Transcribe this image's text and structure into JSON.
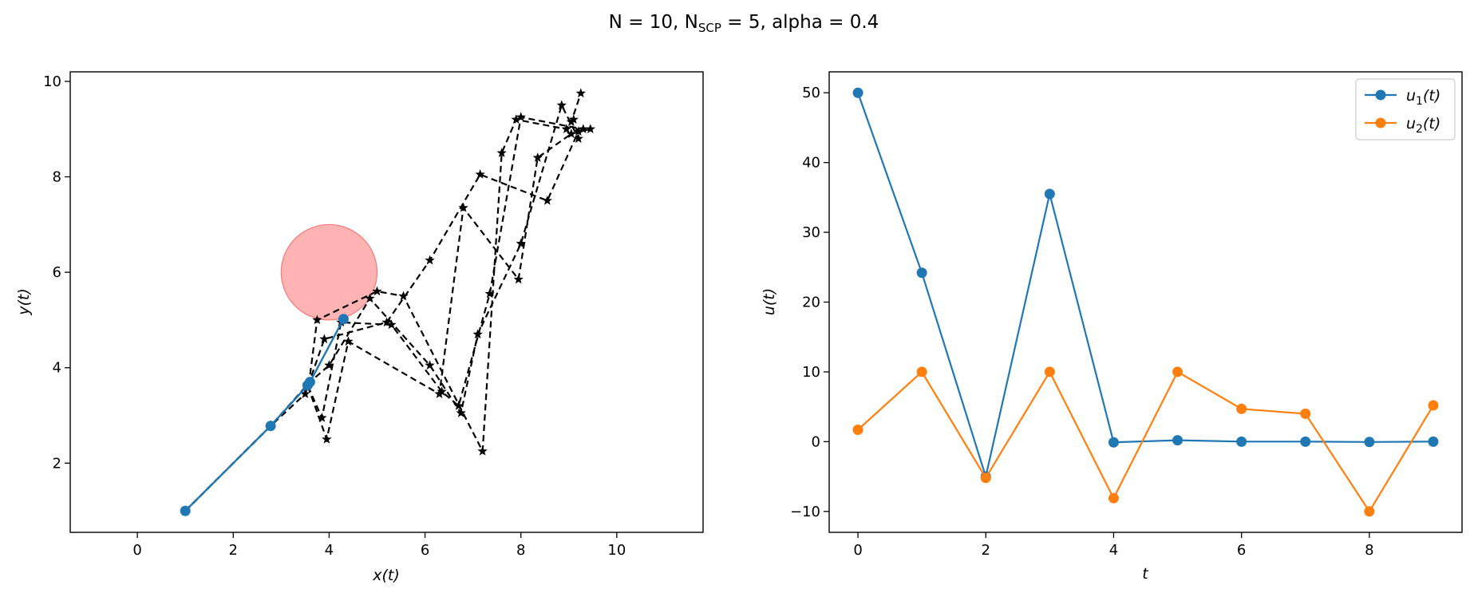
{
  "figure": {
    "title_parts": [
      "N = 10, N",
      "SCP",
      " = 5, alpha = 0.4"
    ]
  },
  "chart_data": [
    {
      "type": "line",
      "xlabel": "x(t)",
      "ylabel": "y(t)",
      "xlim": [
        -1.4,
        11.8
      ],
      "ylim": [
        0.55,
        10.2
      ],
      "xticks": [
        0,
        2,
        4,
        6,
        8,
        10
      ],
      "yticks": [
        2,
        4,
        6,
        8,
        10
      ],
      "grid": false,
      "obstacle": {
        "center": [
          4.0,
          6.0
        ],
        "radius": 1.0,
        "color": "#ff9999"
      },
      "trajectory": {
        "color": "#1f77b4",
        "x": [
          1.0,
          2.78,
          3.55,
          3.6,
          4.3
        ],
        "y": [
          1.0,
          2.78,
          3.63,
          3.7,
          5.02
        ]
      },
      "scp_iterates": [
        {
          "x": [
            1.0,
            2.78,
            3.5,
            3.9,
            5.2,
            6.1,
            7.15,
            8.55,
            9.2,
            9.05,
            9.25
          ],
          "y": [
            1.0,
            2.78,
            3.45,
            4.6,
            4.95,
            6.25,
            8.05,
            7.5,
            8.95,
            9.15,
            9.75
          ]
        },
        {
          "x": [
            1.0,
            2.78,
            3.55,
            3.95,
            4.4,
            6.3,
            6.8,
            7.95,
            8.35,
            9.05,
            9.45
          ],
          "y": [
            1.0,
            2.78,
            3.63,
            2.5,
            4.55,
            3.45,
            7.35,
            5.85,
            8.4,
            8.9,
            9.0
          ]
        },
        {
          "x": [
            1.0,
            2.78,
            3.58,
            3.75,
            5.0,
            5.55,
            7.2,
            7.6,
            7.9,
            8.95,
            9.1
          ],
          "y": [
            1.0,
            2.78,
            3.68,
            5.0,
            5.6,
            5.5,
            2.25,
            8.5,
            9.2,
            9.0,
            9.2
          ]
        },
        {
          "x": [
            1.0,
            2.78,
            3.6,
            4.0,
            4.85,
            6.1,
            6.75,
            7.1,
            8.0,
            8.85,
            9.2
          ],
          "y": [
            1.0,
            2.78,
            3.7,
            4.05,
            5.45,
            4.05,
            3.05,
            4.7,
            6.6,
            9.5,
            8.8
          ]
        },
        {
          "x": [
            1.0,
            2.78,
            3.55,
            3.85,
            4.25,
            5.3,
            6.35,
            6.7,
            7.35,
            8.0,
            9.3
          ],
          "y": [
            1.0,
            2.78,
            3.63,
            2.95,
            4.95,
            4.9,
            3.5,
            3.2,
            5.55,
            9.25,
            9.0
          ]
        }
      ]
    },
    {
      "type": "line",
      "xlabel": "t",
      "ylabel": "u(t)",
      "xlim": [
        -0.45,
        9.45
      ],
      "ylim": [
        -13,
        53
      ],
      "xticks": [
        0,
        2,
        4,
        6,
        8
      ],
      "yticks": [
        -10,
        0,
        10,
        20,
        30,
        40,
        50
      ],
      "grid": false,
      "legend": "top-right",
      "x": [
        0,
        1,
        2,
        3,
        4,
        5,
        6,
        7,
        8,
        9
      ],
      "series": [
        {
          "name_base": "u",
          "name_sub": "1",
          "name_tail": "(t)",
          "color": "#1f77b4",
          "values": [
            50.0,
            24.2,
            -5.0,
            35.5,
            -0.1,
            0.2,
            0.0,
            0.0,
            -0.05,
            0.0
          ]
        },
        {
          "name_base": "u",
          "name_sub": "2",
          "name_tail": "(t)",
          "color": "#ff7f0e",
          "values": [
            1.7,
            10.0,
            -5.2,
            10.0,
            -8.1,
            10.0,
            4.7,
            4.0,
            -10.0,
            5.2
          ]
        }
      ]
    }
  ]
}
